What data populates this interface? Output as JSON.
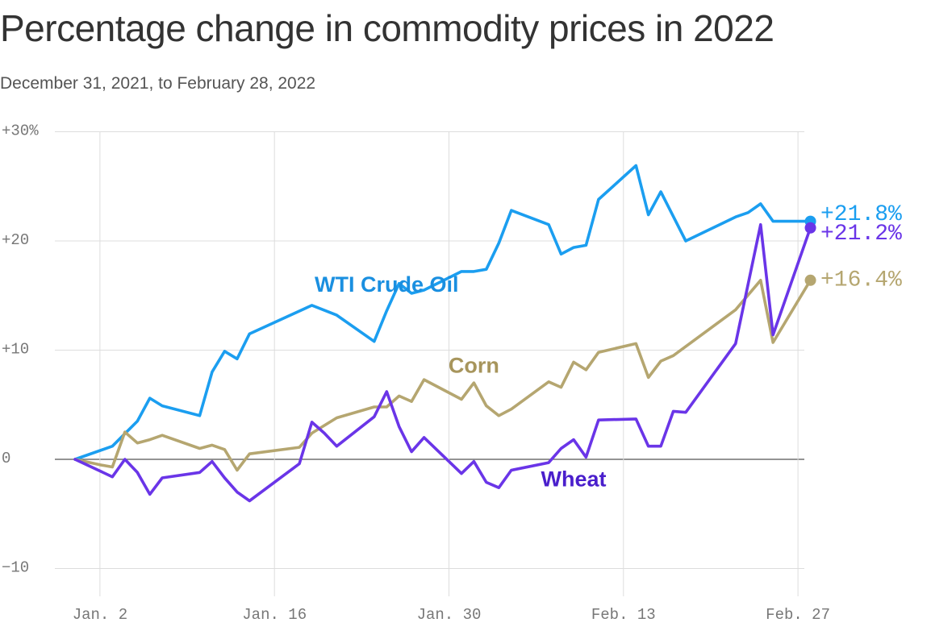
{
  "title": "Percentage change in commodity prices in 2022",
  "subtitle": "December 31, 2021, to February 28, 2022",
  "chart_data": {
    "type": "line",
    "title": "Percentage change in commodity prices in 2022",
    "subtitle": "December 31, 2021, to February 28, 2022",
    "xlabel": "",
    "ylabel": "",
    "ylim": [
      -12,
      30
    ],
    "y_ticks": [
      {
        "value": 30,
        "label": "+30%"
      },
      {
        "value": 20,
        "label": "+20"
      },
      {
        "value": 10,
        "label": "+10"
      },
      {
        "value": 0,
        "label": "0"
      },
      {
        "value": -10,
        "label": "−10"
      }
    ],
    "x_ticks": [
      {
        "value": 2,
        "label": "Jan. 2"
      },
      {
        "value": 16,
        "label": "Jan. 16"
      },
      {
        "value": 30,
        "label": "Jan. 30"
      },
      {
        "value": 44,
        "label": "Feb. 13"
      },
      {
        "value": 58,
        "label": "Feb. 27"
      }
    ],
    "grid": true,
    "legend": "direct labels on lines",
    "series": [
      {
        "name": "WTI Crude Oil",
        "color": "#1b9ef0",
        "end_label": "+21.8%",
        "points": [
          [
            0,
            0
          ],
          [
            3,
            1.2
          ],
          [
            5,
            3.5
          ],
          [
            6,
            5.6
          ],
          [
            7,
            4.9
          ],
          [
            10,
            4.0
          ],
          [
            11,
            8.0
          ],
          [
            12,
            9.9
          ],
          [
            13,
            9.2
          ],
          [
            14,
            11.5
          ],
          [
            19,
            14.1
          ],
          [
            21,
            13.2
          ],
          [
            24,
            10.8
          ],
          [
            25,
            13.6
          ],
          [
            26,
            16.1
          ],
          [
            27,
            15.2
          ],
          [
            28,
            15.5
          ],
          [
            31,
            17.2
          ],
          [
            32,
            17.2
          ],
          [
            33,
            17.4
          ],
          [
            34,
            19.8
          ],
          [
            35,
            22.8
          ],
          [
            38,
            21.5
          ],
          [
            39,
            18.8
          ],
          [
            40,
            19.4
          ],
          [
            41,
            19.6
          ],
          [
            42,
            23.8
          ],
          [
            45,
            26.9
          ],
          [
            46,
            22.4
          ],
          [
            47,
            24.5
          ],
          [
            49,
            20.0
          ],
          [
            53,
            22.2
          ],
          [
            54,
            22.6
          ],
          [
            55,
            23.4
          ],
          [
            56,
            21.8
          ],
          [
            59,
            21.8
          ]
        ]
      },
      {
        "name": "Corn",
        "color": "#b5a670",
        "end_label": "+16.4%",
        "points": [
          [
            0,
            0
          ],
          [
            2,
            -0.5
          ],
          [
            3,
            -0.7
          ],
          [
            4,
            2.5
          ],
          [
            5,
            1.5
          ],
          [
            6,
            1.8
          ],
          [
            7,
            2.2
          ],
          [
            10,
            1.0
          ],
          [
            11,
            1.3
          ],
          [
            12,
            0.9
          ],
          [
            13,
            -1.0
          ],
          [
            14,
            0.5
          ],
          [
            18,
            1.1
          ],
          [
            19,
            2.4
          ],
          [
            21,
            3.8
          ],
          [
            24,
            4.8
          ],
          [
            25,
            4.8
          ],
          [
            26,
            5.8
          ],
          [
            27,
            5.3
          ],
          [
            28,
            7.3
          ],
          [
            31,
            5.5
          ],
          [
            32,
            7.0
          ],
          [
            33,
            4.9
          ],
          [
            34,
            4.0
          ],
          [
            35,
            4.6
          ],
          [
            38,
            7.1
          ],
          [
            39,
            6.6
          ],
          [
            40,
            8.9
          ],
          [
            41,
            8.2
          ],
          [
            42,
            9.8
          ],
          [
            45,
            10.6
          ],
          [
            46,
            7.5
          ],
          [
            47,
            9.0
          ],
          [
            48,
            9.5
          ],
          [
            53,
            13.7
          ],
          [
            55,
            16.4
          ],
          [
            56,
            10.7
          ],
          [
            59,
            16.4
          ]
        ]
      },
      {
        "name": "Wheat",
        "color": "#6a35e8",
        "end_label": "+21.2%",
        "points": [
          [
            0,
            0
          ],
          [
            3,
            -1.6
          ],
          [
            4,
            0.0
          ],
          [
            5,
            -1.2
          ],
          [
            6,
            -3.2
          ],
          [
            7,
            -1.7
          ],
          [
            10,
            -1.2
          ],
          [
            11,
            -0.2
          ],
          [
            12,
            -1.7
          ],
          [
            13,
            -3.0
          ],
          [
            14,
            -3.8
          ],
          [
            18,
            -0.4
          ],
          [
            19,
            3.4
          ],
          [
            20,
            2.4
          ],
          [
            21,
            1.2
          ],
          [
            24,
            3.9
          ],
          [
            25,
            6.2
          ],
          [
            26,
            3.0
          ],
          [
            27,
            0.7
          ],
          [
            28,
            2.0
          ],
          [
            31,
            -1.3
          ],
          [
            32,
            -0.2
          ],
          [
            33,
            -2.1
          ],
          [
            34,
            -2.6
          ],
          [
            35,
            -1.0
          ],
          [
            38,
            -0.3
          ],
          [
            39,
            1.0
          ],
          [
            40,
            1.8
          ],
          [
            41,
            0.2
          ],
          [
            42,
            3.6
          ],
          [
            45,
            3.7
          ],
          [
            46,
            1.2
          ],
          [
            47,
            1.2
          ],
          [
            48,
            4.4
          ],
          [
            49,
            4.3
          ],
          [
            53,
            10.6
          ],
          [
            55,
            21.5
          ],
          [
            56,
            11.4
          ],
          [
            59,
            21.2
          ]
        ]
      }
    ],
    "annotations": [
      {
        "series": "WTI Crude Oil",
        "text": "WTI Crude Oil",
        "x": 25,
        "y": 16.0
      },
      {
        "series": "Corn",
        "text": "Corn",
        "x": 32,
        "y": 8.6
      },
      {
        "series": "Wheat",
        "text": "Wheat",
        "x": 40,
        "y": -1.8
      }
    ]
  }
}
